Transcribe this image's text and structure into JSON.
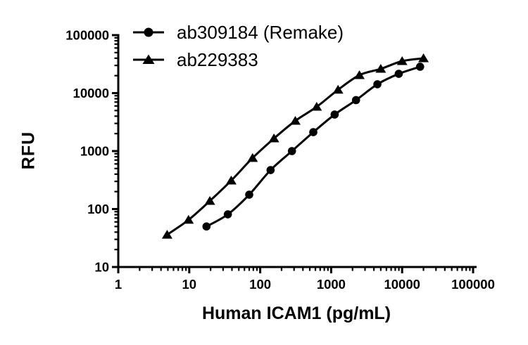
{
  "figure": {
    "background_color": "#ffffff",
    "ink_color": "#000000"
  },
  "chart_data": {
    "type": "line",
    "title": "",
    "xlabel": "Human ICAM1 (pg/mL)",
    "ylabel": "RFU",
    "x_scale": "log",
    "y_scale": "log",
    "xlim": [
      1,
      100000
    ],
    "ylim": [
      10,
      100000
    ],
    "x_ticks": [
      "1",
      "10",
      "100",
      "1000",
      "10000",
      "100000"
    ],
    "y_ticks": [
      "10",
      "100",
      "1000",
      "10000",
      "100000"
    ],
    "grid": false,
    "legend_position": "top-left-inside",
    "series": [
      {
        "name": "ab309184 (Remake)",
        "marker": "circle",
        "color": "#000000",
        "x": [
          17.5,
          35,
          70,
          140,
          280,
          560,
          1120,
          2240,
          4480,
          8960,
          17920
        ],
        "y": [
          50,
          81,
          177,
          470,
          1000,
          2120,
          4270,
          7570,
          14200,
          21500,
          28500
        ]
      },
      {
        "name": "ab229383",
        "marker": "triangle",
        "color": "#000000",
        "x": [
          4.88,
          9.77,
          19.53,
          39.06,
          78.13,
          156.25,
          312.5,
          625,
          1250,
          2500,
          5000,
          10000,
          20000
        ],
        "y": [
          36,
          65,
          138,
          310,
          760,
          1650,
          3320,
          5800,
          11400,
          20400,
          26200,
          35600,
          39800
        ]
      }
    ]
  }
}
